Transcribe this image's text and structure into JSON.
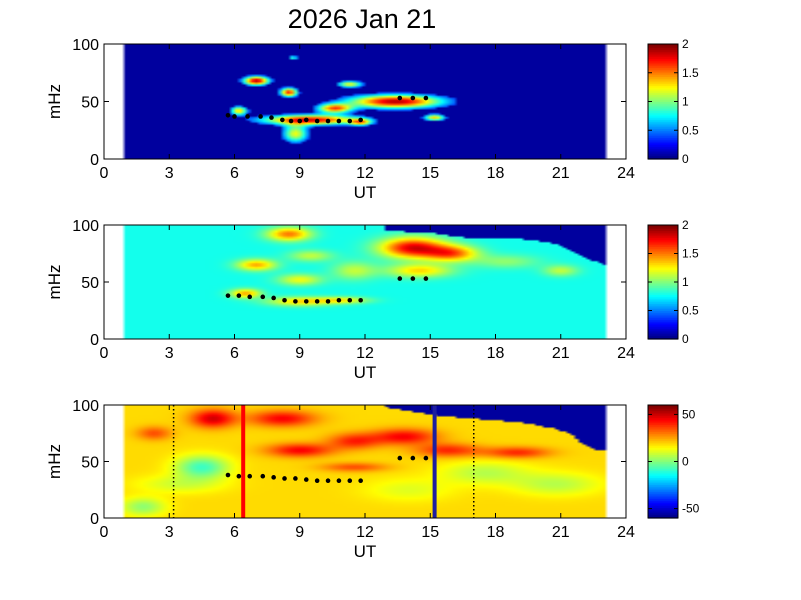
{
  "title": "2026 Jan 21",
  "colors": {
    "background": "#ffffff",
    "axis": "#000000",
    "fill_low": "#00007f",
    "trace_marker": "#000000",
    "marker_red": "#ff0000",
    "marker_blue": "#1e1e9e",
    "dotted_line": "#000000"
  },
  "chart_data": [
    {
      "type": "heatmap",
      "colormap": "jet",
      "xlabel": "UT",
      "ylabel": "mHz",
      "xlim": [
        0,
        24
      ],
      "ylim": [
        0,
        100
      ],
      "xticks": [
        0,
        3,
        6,
        9,
        12,
        15,
        18,
        21,
        24
      ],
      "yticks": [
        0,
        50,
        100
      ],
      "data_extent_ut": [
        1,
        23
      ],
      "colorbar": {
        "range": [
          0,
          2
        ],
        "ticks": [
          "0",
          "0.5",
          "1",
          "1.5",
          "2"
        ]
      },
      "background_value": 0,
      "blobs": [
        {
          "ut": 7.0,
          "mhz": 68,
          "width": 0.6,
          "height": 4,
          "value": 1.9
        },
        {
          "ut": 8.7,
          "mhz": 88,
          "width": 0.2,
          "height": 2,
          "value": 0.9
        },
        {
          "ut": 8.5,
          "mhz": 58,
          "width": 0.4,
          "height": 4,
          "value": 1.7
        },
        {
          "ut": 11.3,
          "mhz": 65,
          "width": 0.6,
          "height": 3,
          "value": 1.2
        },
        {
          "ut": 6.2,
          "mhz": 42,
          "width": 0.4,
          "height": 4,
          "value": 1.3
        },
        {
          "ut": 9.5,
          "mhz": 34,
          "width": 2.3,
          "height": 4.5,
          "value": 1.8
        },
        {
          "ut": 10.6,
          "mhz": 44,
          "width": 0.8,
          "height": 4,
          "value": 1.5
        },
        {
          "ut": 13.4,
          "mhz": 50,
          "width": 2.2,
          "height": 6,
          "value": 1.9
        },
        {
          "ut": 15.2,
          "mhz": 36,
          "width": 0.5,
          "height": 3,
          "value": 1.3
        },
        {
          "ut": 8.8,
          "mhz": 22,
          "width": 0.6,
          "height": 8,
          "value": 1.2
        },
        {
          "ut": 11.8,
          "mhz": 32,
          "width": 0.5,
          "height": 3,
          "value": 1.1
        }
      ],
      "trace": [
        {
          "ut": 5.7,
          "mhz": 38
        },
        {
          "ut": 6.0,
          "mhz": 37
        },
        {
          "ut": 6.6,
          "mhz": 37
        },
        {
          "ut": 7.2,
          "mhz": 37
        },
        {
          "ut": 7.7,
          "mhz": 36
        },
        {
          "ut": 8.2,
          "mhz": 34
        },
        {
          "ut": 8.6,
          "mhz": 33
        },
        {
          "ut": 9.0,
          "mhz": 33
        },
        {
          "ut": 9.3,
          "mhz": 34
        },
        {
          "ut": 9.8,
          "mhz": 33
        },
        {
          "ut": 10.3,
          "mhz": 33
        },
        {
          "ut": 10.8,
          "mhz": 33
        },
        {
          "ut": 11.3,
          "mhz": 33
        },
        {
          "ut": 11.8,
          "mhz": 34
        },
        {
          "ut": 13.6,
          "mhz": 53
        },
        {
          "ut": 14.2,
          "mhz": 53
        },
        {
          "ut": 14.8,
          "mhz": 53
        }
      ]
    },
    {
      "type": "heatmap",
      "colormap": "jet",
      "xlabel": "UT",
      "ylabel": "mHz",
      "xlim": [
        0,
        24
      ],
      "ylim": [
        0,
        100
      ],
      "xticks": [
        0,
        3,
        6,
        9,
        12,
        15,
        18,
        21,
        24
      ],
      "yticks": [
        0,
        50,
        100
      ],
      "data_extent_ut": [
        1,
        23
      ],
      "colorbar": {
        "range": [
          0,
          2
        ],
        "ticks": [
          "0",
          "0.5",
          "1",
          "1.5",
          "2"
        ]
      },
      "background_value": 0.75,
      "blobs": [
        {
          "ut": 8.5,
          "mhz": 92,
          "width": 1.0,
          "height": 6,
          "value": 1.5
        },
        {
          "ut": 7.0,
          "mhz": 65,
          "width": 0.9,
          "height": 5,
          "value": 1.4
        },
        {
          "ut": 9.0,
          "mhz": 52,
          "width": 1.0,
          "height": 5,
          "value": 1.2
        },
        {
          "ut": 9.5,
          "mhz": 73,
          "width": 1.0,
          "height": 5,
          "value": 1.1
        },
        {
          "ut": 11.5,
          "mhz": 60,
          "width": 1.0,
          "height": 8,
          "value": 1.1
        },
        {
          "ut": 14.2,
          "mhz": 80,
          "width": 1.5,
          "height": 9,
          "value": 1.8
        },
        {
          "ut": 16.0,
          "mhz": 75,
          "width": 1.2,
          "height": 7,
          "value": 1.5
        },
        {
          "ut": 6.5,
          "mhz": 40,
          "width": 0.7,
          "height": 4,
          "value": 1.4
        },
        {
          "ut": 9.0,
          "mhz": 33,
          "width": 1.5,
          "height": 4,
          "value": 1.3
        },
        {
          "ut": 11.0,
          "mhz": 34,
          "width": 1.2,
          "height": 3,
          "value": 1.2
        },
        {
          "ut": 14.5,
          "mhz": 60,
          "width": 1.5,
          "height": 6,
          "value": 1.3
        },
        {
          "ut": 21.0,
          "mhz": 60,
          "width": 0.8,
          "height": 5,
          "value": 1.1
        },
        {
          "ut": 18.5,
          "mhz": 68,
          "width": 1.5,
          "height": 6,
          "value": 1.0
        }
      ],
      "low_mask": [
        {
          "ut": 13.0,
          "mhz_from": 95
        },
        {
          "ut": 15.0,
          "mhz_from": 93
        },
        {
          "ut": 17.0,
          "mhz_from": 88
        },
        {
          "ut": 19.0,
          "mhz_from": 88
        },
        {
          "ut": 20.5,
          "mhz_from": 85
        },
        {
          "ut": 21.5,
          "mhz_from": 78
        },
        {
          "ut": 22.0,
          "mhz_from": 72
        },
        {
          "ut": 23.0,
          "mhz_from": 65
        }
      ],
      "trace": [
        {
          "ut": 5.7,
          "mhz": 38
        },
        {
          "ut": 6.2,
          "mhz": 38
        },
        {
          "ut": 6.7,
          "mhz": 37
        },
        {
          "ut": 7.3,
          "mhz": 37
        },
        {
          "ut": 7.8,
          "mhz": 36
        },
        {
          "ut": 8.3,
          "mhz": 34
        },
        {
          "ut": 8.8,
          "mhz": 33
        },
        {
          "ut": 9.3,
          "mhz": 33
        },
        {
          "ut": 9.8,
          "mhz": 33
        },
        {
          "ut": 10.3,
          "mhz": 33
        },
        {
          "ut": 10.8,
          "mhz": 34
        },
        {
          "ut": 11.3,
          "mhz": 34
        },
        {
          "ut": 11.8,
          "mhz": 34
        },
        {
          "ut": 13.6,
          "mhz": 53
        },
        {
          "ut": 14.2,
          "mhz": 53
        },
        {
          "ut": 14.8,
          "mhz": 53
        }
      ]
    },
    {
      "type": "heatmap",
      "colormap": "jet",
      "xlabel": "UT",
      "ylabel": "mHz",
      "xlim": [
        0,
        24
      ],
      "ylim": [
        0,
        100
      ],
      "xticks": [
        0,
        3,
        6,
        9,
        12,
        15,
        18,
        21,
        24
      ],
      "yticks": [
        0,
        50,
        100
      ],
      "data_extent_ut": [
        1,
        23
      ],
      "colorbar": {
        "range": [
          -60,
          60
        ],
        "ticks": [
          "-50",
          "0",
          "50"
        ]
      },
      "background_value": 18,
      "blobs": [
        {
          "ut": 2.3,
          "mhz": 75,
          "width": 0.8,
          "height": 6,
          "value": 35
        },
        {
          "ut": 5.0,
          "mhz": 88,
          "width": 1.0,
          "height": 8,
          "value": 50
        },
        {
          "ut": 8.2,
          "mhz": 88,
          "width": 1.5,
          "height": 7,
          "value": 45
        },
        {
          "ut": 9.0,
          "mhz": 60,
          "width": 1.5,
          "height": 6,
          "value": 45
        },
        {
          "ut": 11.5,
          "mhz": 68,
          "width": 1.2,
          "height": 7,
          "value": 40
        },
        {
          "ut": 13.8,
          "mhz": 72,
          "width": 1.5,
          "height": 7,
          "value": 45
        },
        {
          "ut": 15.8,
          "mhz": 60,
          "width": 1.5,
          "height": 6,
          "value": 40
        },
        {
          "ut": 19.0,
          "mhz": 58,
          "width": 1.5,
          "height": 5,
          "value": 40
        },
        {
          "ut": 11.5,
          "mhz": 45,
          "width": 1.5,
          "height": 4,
          "value": 35
        },
        {
          "ut": 3.5,
          "mhz": 30,
          "width": 2.0,
          "height": 8,
          "value": 8
        },
        {
          "ut": 4.5,
          "mhz": 45,
          "width": 1.2,
          "height": 10,
          "value": -10
        },
        {
          "ut": 17.5,
          "mhz": 40,
          "width": 2.0,
          "height": 10,
          "value": 5
        },
        {
          "ut": 14.0,
          "mhz": 25,
          "width": 2.0,
          "height": 10,
          "value": 10
        },
        {
          "ut": 1.8,
          "mhz": 10,
          "width": 1.0,
          "height": 8,
          "value": 0
        },
        {
          "ut": 20.8,
          "mhz": 30,
          "width": 2.0,
          "height": 10,
          "value": 5
        }
      ],
      "low_mask": [
        {
          "ut": 13.0,
          "mhz_from": 98
        },
        {
          "ut": 15.5,
          "mhz_from": 90
        },
        {
          "ut": 17.0,
          "mhz_from": 88
        },
        {
          "ut": 19.0,
          "mhz_from": 85
        },
        {
          "ut": 20.5,
          "mhz_from": 80
        },
        {
          "ut": 21.5,
          "mhz_from": 75
        },
        {
          "ut": 22.0,
          "mhz_from": 65
        },
        {
          "ut": 22.7,
          "mhz_from": 60
        }
      ],
      "trace": [
        {
          "ut": 5.7,
          "mhz": 38
        },
        {
          "ut": 6.2,
          "mhz": 37
        },
        {
          "ut": 6.7,
          "mhz": 37
        },
        {
          "ut": 7.3,
          "mhz": 37
        },
        {
          "ut": 7.8,
          "mhz": 36
        },
        {
          "ut": 8.3,
          "mhz": 35
        },
        {
          "ut": 8.8,
          "mhz": 35
        },
        {
          "ut": 9.3,
          "mhz": 34
        },
        {
          "ut": 9.8,
          "mhz": 33
        },
        {
          "ut": 10.3,
          "mhz": 33
        },
        {
          "ut": 10.8,
          "mhz": 33
        },
        {
          "ut": 11.3,
          "mhz": 33
        },
        {
          "ut": 11.8,
          "mhz": 33
        },
        {
          "ut": 13.6,
          "mhz": 53
        },
        {
          "ut": 14.2,
          "mhz": 53
        },
        {
          "ut": 14.8,
          "mhz": 53
        }
      ],
      "vertical_lines": [
        {
          "ut": 3.2,
          "style": "dotted",
          "color": "#000000"
        },
        {
          "ut": 6.4,
          "style": "solid",
          "color": "#ff0000"
        },
        {
          "ut": 15.2,
          "style": "solid",
          "color": "#1e1e9e"
        },
        {
          "ut": 17.0,
          "style": "dotted",
          "color": "#000000"
        }
      ]
    }
  ]
}
